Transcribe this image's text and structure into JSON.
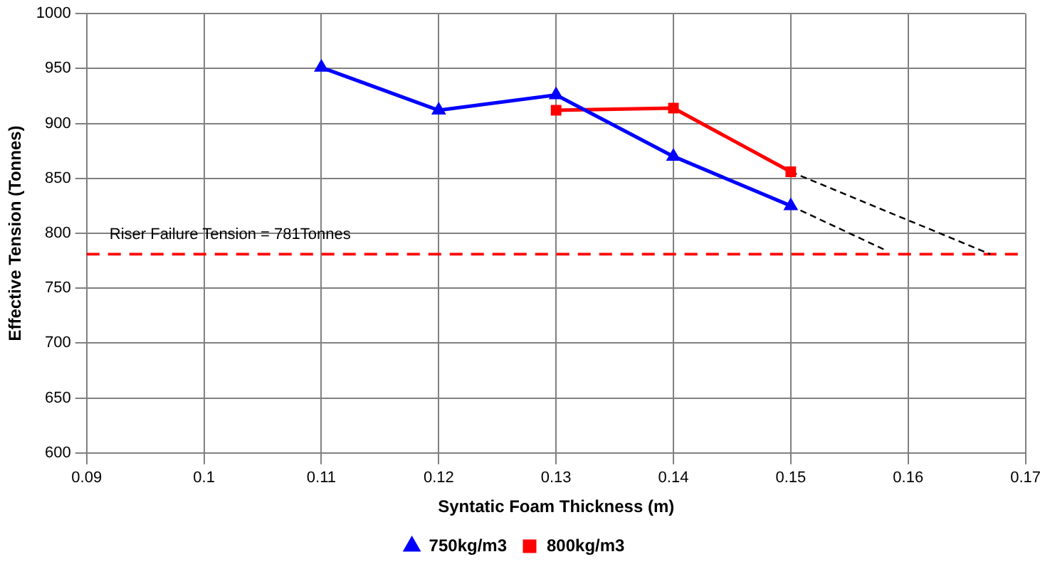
{
  "chart_data": {
    "type": "line",
    "xlabel": "Syntatic Foam Thickness (m)",
    "ylabel": "Effective Tension (Tonnes)",
    "xlim": [
      0.09,
      0.17
    ],
    "xticks": [
      0.09,
      0.1,
      0.11,
      0.12,
      0.13,
      0.14,
      0.15,
      0.16,
      0.17
    ],
    "ylim": [
      600,
      1000
    ],
    "yticks": [
      600,
      650,
      700,
      750,
      800,
      850,
      900,
      950,
      1000
    ],
    "grid": true,
    "legend": "bottom",
    "series": [
      {
        "name": "750kg/m3",
        "color": "#0000ff",
        "marker": "triangle",
        "line_style": "solid",
        "x": [
          0.11,
          0.12,
          0.13,
          0.14,
          0.15
        ],
        "values": [
          951,
          912,
          926,
          870,
          825
        ]
      },
      {
        "name": "800kg/m3",
        "color": "#ff0000",
        "marker": "square",
        "line_style": "solid",
        "x": [
          0.13,
          0.14,
          0.15
        ],
        "values": [
          912,
          914,
          856
        ]
      },
      {
        "color": "#000000",
        "marker": "none",
        "line_style": "dashed",
        "x": [
          0.15,
          0.158
        ],
        "values": [
          825,
          785
        ]
      },
      {
        "color": "#000000",
        "marker": "none",
        "line_style": "dashed",
        "x": [
          0.15,
          0.167
        ],
        "values": [
          856,
          781
        ]
      }
    ],
    "ref_lines": [
      {
        "axis": "y",
        "value": 781,
        "label": "Riser Failure Tension = 781Tonnes",
        "color": "#ff0000",
        "line_style": "dashed"
      }
    ]
  }
}
